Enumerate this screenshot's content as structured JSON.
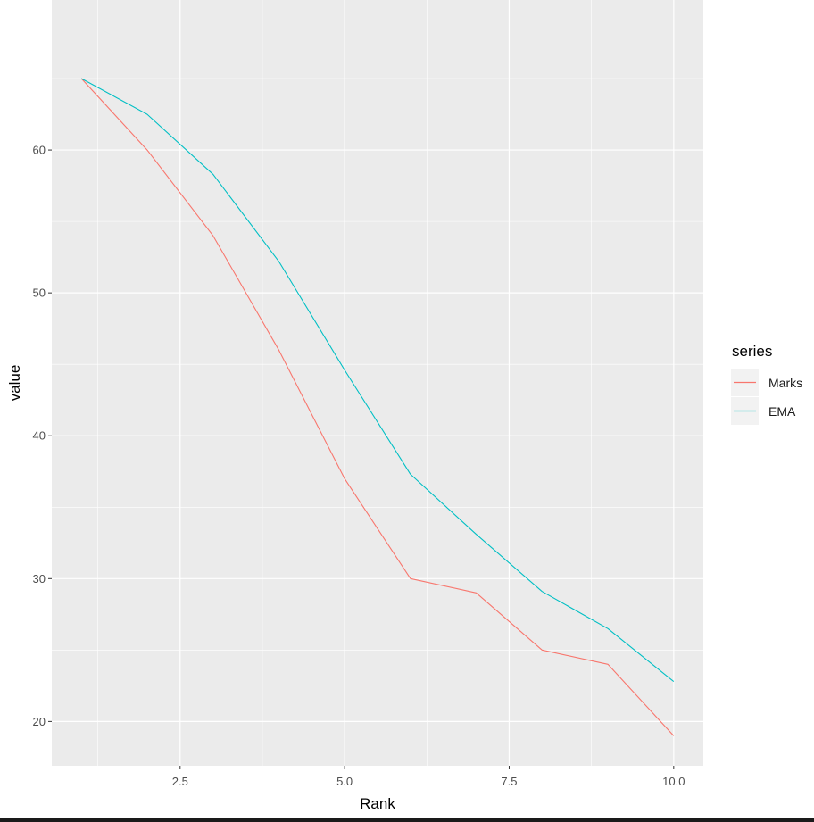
{
  "chart_data": {
    "type": "line",
    "xlabel": "Rank",
    "ylabel": "value",
    "x": [
      1,
      2,
      3,
      4,
      5,
      6,
      7,
      8,
      9,
      10
    ],
    "series": [
      {
        "name": "Marks",
        "color": "#F8766D",
        "values": [
          65,
          60,
          54,
          46,
          37,
          30,
          29,
          25,
          24,
          19
        ]
      },
      {
        "name": "EMA",
        "color": "#00BFC4",
        "values": [
          65,
          62.5,
          58.3,
          52.2,
          44.6,
          37.3,
          33.1,
          29.1,
          26.5,
          22.8
        ]
      }
    ],
    "xlim": [
      0.55,
      10.45
    ],
    "ylim": [
      16.9,
      70.5
    ],
    "x_ticks": [
      2.5,
      5.0,
      7.5,
      10.0
    ],
    "x_tick_labels": [
      "2.5",
      "5.0",
      "7.5",
      "10.0"
    ],
    "y_ticks": [
      20,
      30,
      40,
      50,
      60
    ],
    "y_tick_labels": [
      "20",
      "30",
      "40",
      "50",
      "60"
    ],
    "grid": true,
    "legend": {
      "title": "series",
      "position": "right"
    },
    "panel_background": "#EBEBEB",
    "grid_color": "#FFFFFF"
  }
}
